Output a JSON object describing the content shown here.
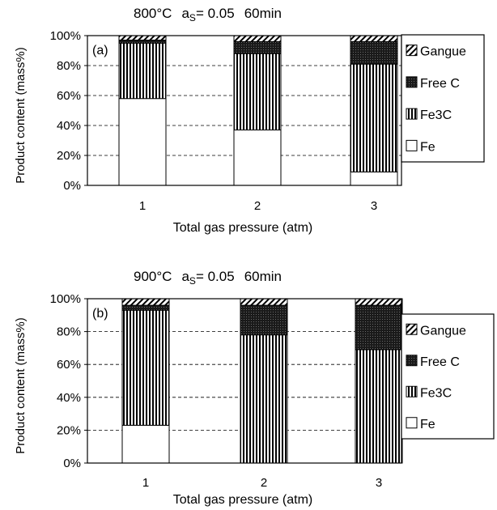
{
  "chart_data": [
    {
      "type": "bar",
      "stacked": true,
      "title_parts": {
        "temp": "800°C",
        "a_main": "a",
        "a_sub": "S",
        "a_value": "= 0.05",
        "time": "60min"
      },
      "panel_label": "(a)",
      "xlabel": "Total gas pressure (atm)",
      "ylabel": "Product content (mass%)",
      "categories": [
        "1",
        "2",
        "3"
      ],
      "yticks": [
        "0%",
        "20%",
        "40%",
        "60%",
        "80%",
        "100%"
      ],
      "ylim": [
        0,
        100
      ],
      "grid": true,
      "legend_position": "right",
      "series": [
        {
          "name": "Fe",
          "values": [
            58,
            37,
            9
          ]
        },
        {
          "name": "Fe3C",
          "values": [
            37,
            51,
            72
          ]
        },
        {
          "name": "Free C",
          "values": [
            2,
            8,
            15
          ]
        },
        {
          "name": "Gangue",
          "values": [
            3,
            4,
            4
          ]
        }
      ]
    },
    {
      "type": "bar",
      "stacked": true,
      "title_parts": {
        "temp": "900°C",
        "a_main": "a",
        "a_sub": "S",
        "a_value": "= 0.05",
        "time": "60min"
      },
      "panel_label": "(b)",
      "xlabel": "Total gas pressure (atm)",
      "ylabel": "Product content (mass%)",
      "categories": [
        "1",
        "2",
        "3"
      ],
      "yticks": [
        "0%",
        "20%",
        "40%",
        "60%",
        "80%",
        "100%"
      ],
      "ylim": [
        0,
        100
      ],
      "grid": true,
      "legend_position": "right",
      "series": [
        {
          "name": "Fe",
          "values": [
            23,
            0,
            0
          ]
        },
        {
          "name": "Fe3C",
          "values": [
            70,
            78,
            69
          ]
        },
        {
          "name": "Free C",
          "values": [
            3,
            18,
            27
          ]
        },
        {
          "name": "Gangue",
          "values": [
            4,
            4,
            4
          ]
        }
      ]
    }
  ]
}
